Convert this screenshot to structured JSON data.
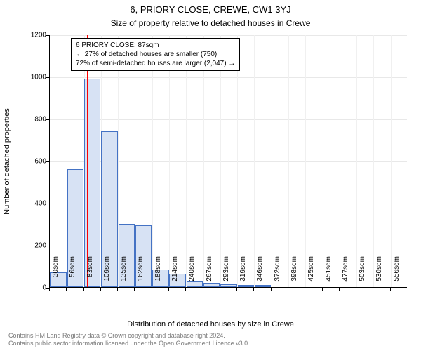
{
  "title_main": "6, PRIORY CLOSE, CREWE, CW1 3YJ",
  "title_sub": "Size of property relative to detached houses in Crewe",
  "y_label": "Number of detached properties",
  "x_label": "Distribution of detached houses by size in Crewe",
  "footer_line1": "Contains HM Land Registry data © Crown copyright and database right 2024.",
  "footer_line2": "Contains public sector information licensed under the Open Government Licence v3.0.",
  "chart": {
    "y_max": 1200,
    "y_ticks": [
      0,
      200,
      400,
      600,
      800,
      1000,
      1200
    ],
    "x_categories": [
      "30sqm",
      "56sqm",
      "83sqm",
      "109sqm",
      "135sqm",
      "162sqm",
      "188sqm",
      "214sqm",
      "240sqm",
      "267sqm",
      "293sqm",
      "319sqm",
      "346sqm",
      "372sqm",
      "398sqm",
      "425sqm",
      "451sqm",
      "477sqm",
      "503sqm",
      "530sqm",
      "556sqm"
    ],
    "bar_values": [
      70,
      560,
      990,
      740,
      300,
      295,
      85,
      65,
      30,
      20,
      15,
      10,
      10,
      0,
      0,
      0,
      0,
      0,
      0,
      0,
      0
    ],
    "bar_fill": "#d7e2f4",
    "bar_stroke": "#4472c4",
    "grid_color": "#e8e8e8",
    "marker_color": "#ff0000",
    "marker_x_value": 87,
    "x_min": 30,
    "x_step": 26.3,
    "info_box": {
      "line1": "6 PRIORY CLOSE: 87sqm",
      "line2": "← 27% of detached houses are smaller (750)",
      "line3": "72% of semi-detached houses are larger (2,047) →"
    },
    "title_fontsize": 13,
    "sub_fontsize": 12,
    "axis_fontsize": 11,
    "tick_fontsize": 10
  }
}
